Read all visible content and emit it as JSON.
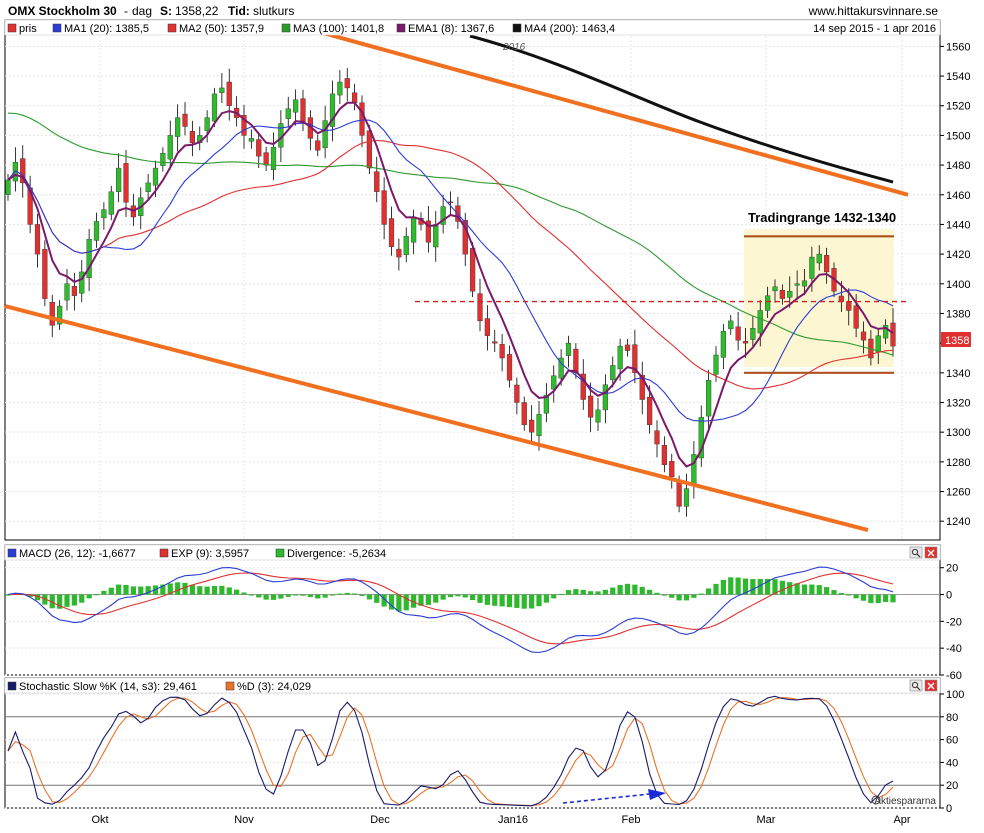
{
  "header": {
    "title": "OMX Stockholm 30",
    "interval": "dag",
    "s_label": "S:",
    "s_value": "1358,22",
    "tid_label": "Tid:",
    "tid_value": "slutkurs",
    "site": "www.hittakursvinnare.se",
    "date_range": "14 sep 2015 - 1 apr 2016"
  },
  "legend": [
    {
      "name": "pris",
      "color": "#e03030"
    },
    {
      "name": "MA1 (20): 1385,5",
      "color": "#2a3cd6"
    },
    {
      "name": "MA2 (50): 1357,9",
      "color": "#e03030"
    },
    {
      "name": "MA3 (100): 1401,8",
      "color": "#2e9a2e"
    },
    {
      "name": "EMA1 (8): 1367,6",
      "color": "#7a1a6a"
    },
    {
      "name": "MA4 (200): 1463,4",
      "color": "#111111"
    }
  ],
  "price_label": "1358",
  "year_marker": "2016",
  "annotation": "Tradingrange 1432-1340",
  "macd": {
    "legend": [
      {
        "name": "MACD (26, 12): -1,6677",
        "color": "#2a3cd6"
      },
      {
        "name": "EXP (9): 3,5957",
        "color": "#e03030"
      },
      {
        "name": "Divergence: -5,2634",
        "color": "#2eb82e"
      }
    ]
  },
  "stoch": {
    "legend": [
      {
        "name": "Stochastic Slow %K (14, s3): 29,461",
        "color": "#1a1a6a"
      },
      {
        "name": "%D (3): 24,029",
        "color": "#e8742a"
      }
    ],
    "watermark": "Aktiespararna"
  },
  "chart_data": [
    {
      "type": "candlestick",
      "title": "OMX Stockholm 30",
      "y_ticks": [
        1240,
        1260,
        1280,
        1300,
        1320,
        1340,
        1360,
        1380,
        1400,
        1420,
        1440,
        1460,
        1480,
        1500,
        1520,
        1540,
        1560
      ],
      "ylim": [
        1228,
        1567
      ],
      "x_ticks": [
        "Okt",
        "Nov",
        "Dec",
        "Jan16",
        "Feb",
        "Mar",
        "Apr"
      ],
      "last_close": 1358.22,
      "close_series": [
        1470,
        1482,
        1468,
        1440,
        1420,
        1390,
        1372,
        1385,
        1400,
        1392,
        1408,
        1430,
        1442,
        1450,
        1462,
        1478,
        1455,
        1445,
        1458,
        1468,
        1478,
        1488,
        1500,
        1512,
        1506,
        1495,
        1500,
        1512,
        1528,
        1532,
        1520,
        1512,
        1500,
        1498,
        1486,
        1480,
        1492,
        1508,
        1518,
        1524,
        1508,
        1498,
        1490,
        1510,
        1528,
        1536,
        1532,
        1522,
        1500,
        1478,
        1462,
        1440,
        1425,
        1418,
        1432,
        1445,
        1440,
        1428,
        1440,
        1452,
        1455,
        1442,
        1420,
        1395,
        1375,
        1365,
        1360,
        1350,
        1335,
        1320,
        1305,
        1300,
        1312,
        1325,
        1338,
        1350,
        1360,
        1340,
        1322,
        1310,
        1315,
        1332,
        1345,
        1358,
        1355,
        1340,
        1322,
        1305,
        1292,
        1278,
        1270,
        1250,
        1262,
        1285,
        1310,
        1335,
        1352,
        1368,
        1375,
        1362,
        1360,
        1370,
        1382,
        1392,
        1398,
        1390,
        1395,
        1400,
        1402,
        1418,
        1420,
        1408,
        1395,
        1388,
        1382,
        1370,
        1362,
        1350,
        1365,
        1372,
        1358
      ],
      "trendlines": [
        {
          "from": [
            "2015-09-14",
            1385
          ],
          "to": [
            "2016-03-28",
            1234
          ]
        },
        {
          "from": [
            "2015-11-24",
            1570
          ],
          "to": [
            "2016-04-01",
            1460
          ]
        }
      ],
      "range": {
        "label": "Tradingrange 1432-1340",
        "upper": 1432,
        "lower": 1340,
        "dashed_level": 1388
      },
      "series_names": [
        "MA1 (20)",
        "MA2 (50)",
        "MA3 (100)",
        "EMA1 (8)",
        "MA4 (200)"
      ],
      "last_values": {
        "MA1 (20)": 1385.5,
        "MA2 (50)": 1357.9,
        "MA3 (100)": 1401.8,
        "EMA1 (8)": 1367.6,
        "MA4 (200)": 1463.4
      }
    },
    {
      "type": "line",
      "title": "MACD (26, 12)",
      "y_ticks": [
        20,
        0,
        -20,
        -40,
        -60
      ],
      "ylim": [
        -60,
        25
      ],
      "last_values": {
        "MACD": -1.6677,
        "EXP": 3.5957,
        "Divergence": -5.2634
      }
    },
    {
      "type": "line",
      "title": "Stochastic Slow %K (14, s3)",
      "y_ticks": [
        100,
        80,
        60,
        40,
        20,
        0
      ],
      "ylim": [
        0,
        100
      ],
      "last_values": {
        "%K": 29.461,
        "%D": 24.029
      }
    }
  ]
}
